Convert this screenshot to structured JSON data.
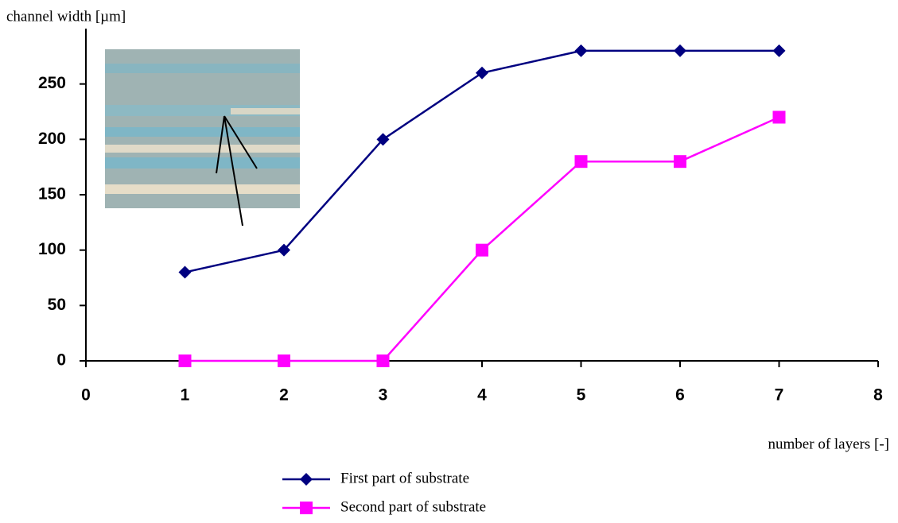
{
  "chart_data": {
    "type": "line",
    "y_label": "channel width [µm]",
    "x_label": "number of layers [-]",
    "x": [
      1,
      2,
      3,
      4,
      5,
      6,
      7
    ],
    "series": [
      {
        "name": "First part of substrate",
        "color": "#000080",
        "marker": "diamond",
        "values": [
          80,
          100,
          200,
          260,
          280,
          280,
          280
        ]
      },
      {
        "name": "Second part of substrate",
        "color": "#ff00ff",
        "marker": "square",
        "values": [
          0,
          0,
          0,
          100,
          180,
          180,
          220
        ]
      }
    ],
    "xlim": [
      0,
      8
    ],
    "xticks": [
      0,
      1,
      2,
      3,
      4,
      5,
      6,
      7,
      8
    ],
    "ylim": [
      0,
      300
    ],
    "yticks": [
      0,
      50,
      100,
      150,
      200,
      250
    ]
  }
}
